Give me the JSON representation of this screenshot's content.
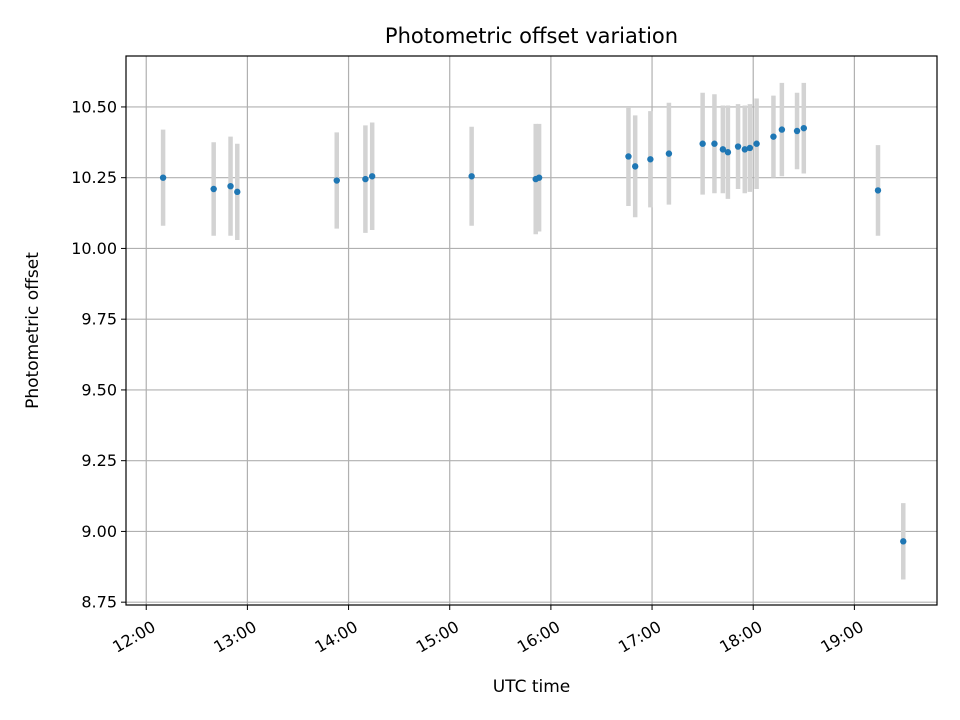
{
  "chart_data": {
    "type": "scatter",
    "title": "Photometric offset variation",
    "xlabel": "UTC time",
    "ylabel": "Photometric offset",
    "x_unit": "UTC hours",
    "xlim": [
      "11:48",
      "19:49"
    ],
    "ylim": [
      8.74,
      10.68
    ],
    "x_ticks": [
      "12:00",
      "13:00",
      "14:00",
      "15:00",
      "16:00",
      "17:00",
      "18:00",
      "19:00"
    ],
    "y_ticks": [
      "8.75",
      "9.00",
      "9.25",
      "9.50",
      "9.75",
      "10.00",
      "10.25",
      "10.50"
    ],
    "grid": true,
    "point_color": "#1f77b4",
    "errorbar_color": "#d3d3d3",
    "points": [
      {
        "x": "12:10",
        "y": 10.25,
        "err": 0.17
      },
      {
        "x": "12:40",
        "y": 10.21,
        "err": 0.165
      },
      {
        "x": "12:50",
        "y": 10.22,
        "err": 0.175
      },
      {
        "x": "12:54",
        "y": 10.2,
        "err": 0.17
      },
      {
        "x": "13:53",
        "y": 10.24,
        "err": 0.17
      },
      {
        "x": "14:10",
        "y": 10.245,
        "err": 0.19
      },
      {
        "x": "14:14",
        "y": 10.255,
        "err": 0.19
      },
      {
        "x": "15:13",
        "y": 10.255,
        "err": 0.175
      },
      {
        "x": "15:51",
        "y": 10.245,
        "err": 0.195
      },
      {
        "x": "15:53",
        "y": 10.25,
        "err": 0.19
      },
      {
        "x": "16:46",
        "y": 10.325,
        "err": 0.175
      },
      {
        "x": "16:50",
        "y": 10.29,
        "err": 0.18
      },
      {
        "x": "16:59",
        "y": 10.315,
        "err": 0.17
      },
      {
        "x": "17:10",
        "y": 10.335,
        "err": 0.18
      },
      {
        "x": "17:30",
        "y": 10.37,
        "err": 0.18
      },
      {
        "x": "17:37",
        "y": 10.37,
        "err": 0.175
      },
      {
        "x": "17:42",
        "y": 10.35,
        "err": 0.155
      },
      {
        "x": "17:45",
        "y": 10.34,
        "err": 0.165
      },
      {
        "x": "17:51",
        "y": 10.36,
        "err": 0.15
      },
      {
        "x": "17:55",
        "y": 10.35,
        "err": 0.155
      },
      {
        "x": "17:58",
        "y": 10.355,
        "err": 0.155
      },
      {
        "x": "18:02",
        "y": 10.37,
        "err": 0.16
      },
      {
        "x": "18:12",
        "y": 10.395,
        "err": 0.145
      },
      {
        "x": "18:17",
        "y": 10.42,
        "err": 0.165
      },
      {
        "x": "18:26",
        "y": 10.415,
        "err": 0.135
      },
      {
        "x": "18:30",
        "y": 10.425,
        "err": 0.16
      },
      {
        "x": "19:14",
        "y": 10.205,
        "err": 0.16
      },
      {
        "x": "19:29",
        "y": 8.965,
        "err": 0.135
      }
    ]
  }
}
